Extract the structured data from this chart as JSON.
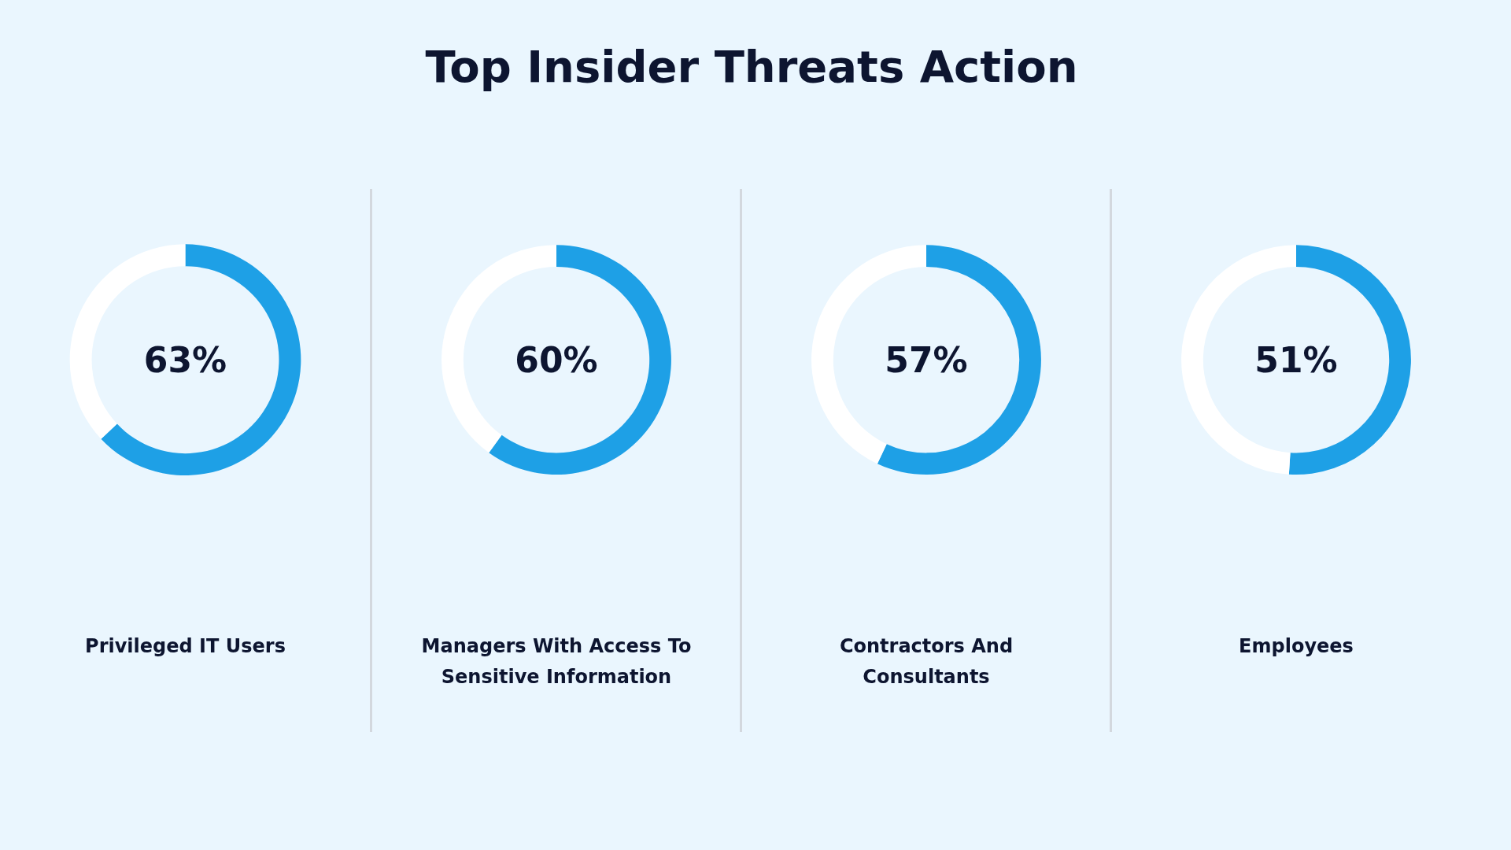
{
  "chart_data": [
    {
      "type": "other",
      "title": "Top Insider Threats Action"
    },
    {
      "type": "donut",
      "title": "Privileged IT Users",
      "categories": [
        null,
        null
      ],
      "values": [
        63,
        37
      ],
      "colors": [
        "#1ea0e6",
        "#ffffff"
      ],
      "annotations": [
        "63%"
      ]
    },
    {
      "type": "donut",
      "title": "Managers With Access To Sensitive Information",
      "categories": [
        null,
        null
      ],
      "values": [
        60,
        40
      ],
      "colors": [
        "#1ea0e6",
        "#ffffff"
      ],
      "annotations": [
        "60%"
      ]
    },
    {
      "type": "donut",
      "title": "Contractors And Consultants",
      "categories": [
        null,
        null
      ],
      "values": [
        57,
        43
      ],
      "colors": [
        "#1ea0e6",
        "#ffffff"
      ],
      "annotations": [
        "57%"
      ]
    },
    {
      "type": "donut",
      "title": "Employees",
      "categories": [
        null,
        null
      ],
      "values": [
        51,
        49
      ],
      "colors": [
        "#1ea0e6",
        "#ffffff"
      ],
      "annotations": [
        "51%"
      ]
    }
  ]
}
